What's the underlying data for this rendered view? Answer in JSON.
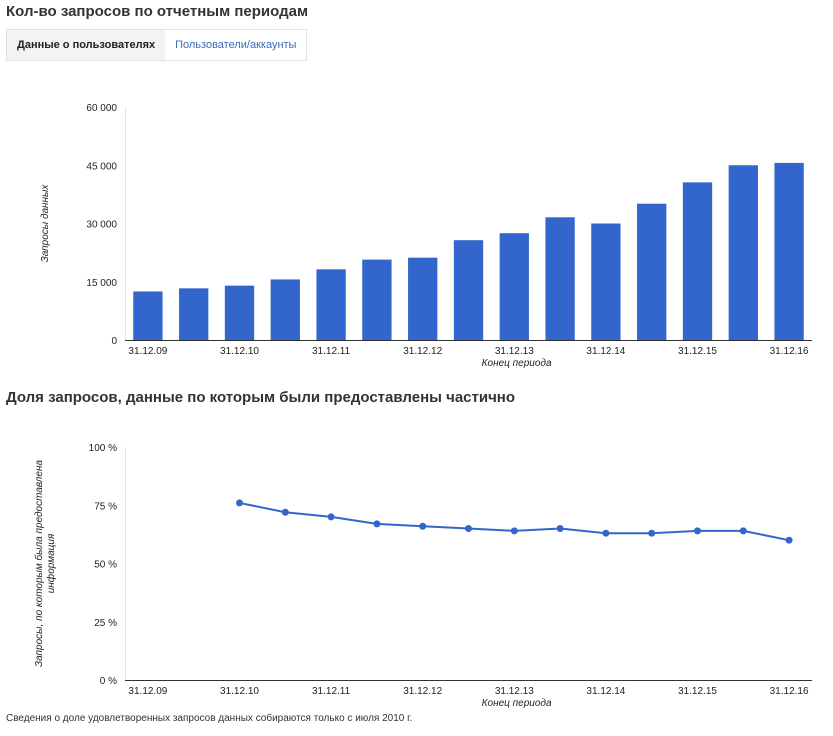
{
  "header": {
    "title": "Кол-во запросов по отчетным периодам",
    "tabs": [
      {
        "label": "Данные о пользователях",
        "active": true
      },
      {
        "label": "Пользователи/аккаунты",
        "active": false
      }
    ]
  },
  "section2": {
    "title": "Доля запросов, данные по которым были предоставлены частично"
  },
  "footnote": "Сведения о доле удовлетворенных запросов данных собираются только с июля 2010 г.",
  "colors": {
    "accent": "#3366cc",
    "link": "#3b6bb5"
  },
  "chart_data": [
    {
      "type": "bar",
      "xlabel": "Конец периода",
      "ylabel": "Запросы данных",
      "ylim": [
        0,
        60000
      ],
      "y_ticks": [
        "0",
        "15 000",
        "30 000",
        "45 000",
        "60 000"
      ],
      "y_tick_values": [
        0,
        15000,
        30000,
        45000,
        60000
      ],
      "x_tick_labels": [
        "31.12.09",
        "31.12.10",
        "31.12.11",
        "31.12.12",
        "31.12.13",
        "31.12.14",
        "31.12.15",
        "31.12.16"
      ],
      "values": [
        12500,
        13300,
        14000,
        15600,
        18200,
        20700,
        21200,
        25700,
        27500,
        31600,
        30000,
        35100,
        40600,
        45000,
        45600
      ]
    },
    {
      "type": "line",
      "xlabel": "Конец периода",
      "ylabel": "Запросы, по которым была предоставлена информация",
      "ylim": [
        0,
        100
      ],
      "y_ticks": [
        "0 %",
        "25 %",
        "50 %",
        "75 %",
        "100 %"
      ],
      "y_tick_values": [
        0,
        25,
        50,
        75,
        100
      ],
      "x_tick_labels": [
        "31.12.09",
        "31.12.10",
        "31.12.11",
        "31.12.12",
        "31.12.13",
        "31.12.14",
        "31.12.15",
        "31.12.16"
      ],
      "values": [
        null,
        null,
        76,
        72,
        70,
        67,
        66,
        65,
        64,
        65,
        63,
        63,
        64,
        64,
        60
      ]
    }
  ]
}
